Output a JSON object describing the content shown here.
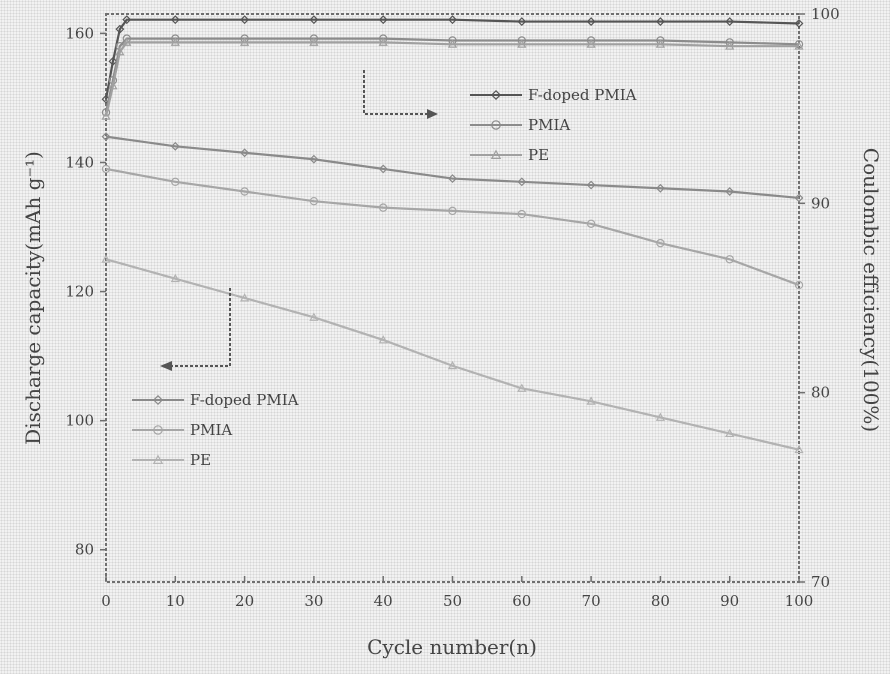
{
  "chart_data": {
    "type": "line",
    "title": "",
    "xlabel": "Cycle number(n)",
    "ylabel": "Discharge capacity(mAh g⁻¹)",
    "y2label": "Coulombic efficiency(100%)",
    "xlim": [
      0,
      100
    ],
    "ylim": [
      75,
      163
    ],
    "y2lim": [
      70,
      100
    ],
    "xticks": [
      "0",
      "10",
      "20",
      "30",
      "40",
      "50",
      "60",
      "70",
      "80",
      "90",
      "100"
    ],
    "yticks": [
      "80",
      "100",
      "120",
      "140",
      "160"
    ],
    "y2ticks": [
      "70",
      "80",
      "90",
      "100"
    ],
    "grid": false,
    "capacity_series": [
      {
        "name": "F-doped PMIA",
        "color": "#8a8a8a",
        "marker": "diamond",
        "x": [
          0,
          10,
          20,
          30,
          40,
          50,
          60,
          70,
          80,
          90,
          100
        ],
        "values": [
          144,
          142.5,
          141.5,
          140.5,
          139,
          137.5,
          137,
          136.5,
          136,
          135.5,
          134.5
        ]
      },
      {
        "name": "PMIA",
        "color": "#a6a6a6",
        "marker": "circle",
        "x": [
          0,
          10,
          20,
          30,
          40,
          50,
          60,
          70,
          80,
          90,
          100
        ],
        "values": [
          139,
          137,
          135.5,
          134,
          133,
          132.5,
          132,
          130.5,
          127.5,
          125,
          121
        ]
      },
      {
        "name": "PE",
        "color": "#b2b2b2",
        "marker": "triangle",
        "x": [
          0,
          10,
          20,
          30,
          40,
          50,
          60,
          70,
          80,
          90,
          100
        ],
        "values": [
          125,
          122,
          119,
          116,
          112.5,
          108.5,
          105,
          103,
          100.5,
          98,
          95.5
        ]
      }
    ],
    "efficiency_series": [
      {
        "name": "F-doped PMIA",
        "color": "#555555",
        "marker": "diamond",
        "x": [
          0,
          1,
          2,
          3,
          10,
          20,
          30,
          40,
          50,
          60,
          70,
          80,
          90,
          100
        ],
        "values": [
          95.5,
          97.5,
          99.2,
          99.7,
          99.7,
          99.7,
          99.7,
          99.7,
          99.7,
          99.6,
          99.6,
          99.6,
          99.6,
          99.5
        ]
      },
      {
        "name": "PMIA",
        "color": "#8c8c8c",
        "marker": "circle",
        "x": [
          0,
          1,
          2,
          3,
          10,
          20,
          30,
          40,
          50,
          60,
          70,
          80,
          90,
          100
        ],
        "values": [
          94.8,
          96.5,
          98.3,
          98.7,
          98.7,
          98.7,
          98.7,
          98.7,
          98.6,
          98.6,
          98.6,
          98.6,
          98.5,
          98.4
        ]
      },
      {
        "name": "PE",
        "color": "#a0a0a0",
        "marker": "triangle",
        "x": [
          0,
          1,
          2,
          3,
          10,
          20,
          30,
          40,
          50,
          60,
          70,
          80,
          90,
          100
        ],
        "values": [
          94.6,
          96.2,
          98.0,
          98.5,
          98.5,
          98.5,
          98.5,
          98.5,
          98.4,
          98.4,
          98.4,
          98.4,
          98.3,
          98.3
        ]
      }
    ],
    "legend_efficiency": [
      "F-doped PMIA",
      "PMIA",
      "PE"
    ],
    "legend_capacity": [
      "F-doped PMIA",
      "PMIA",
      "PE"
    ]
  }
}
